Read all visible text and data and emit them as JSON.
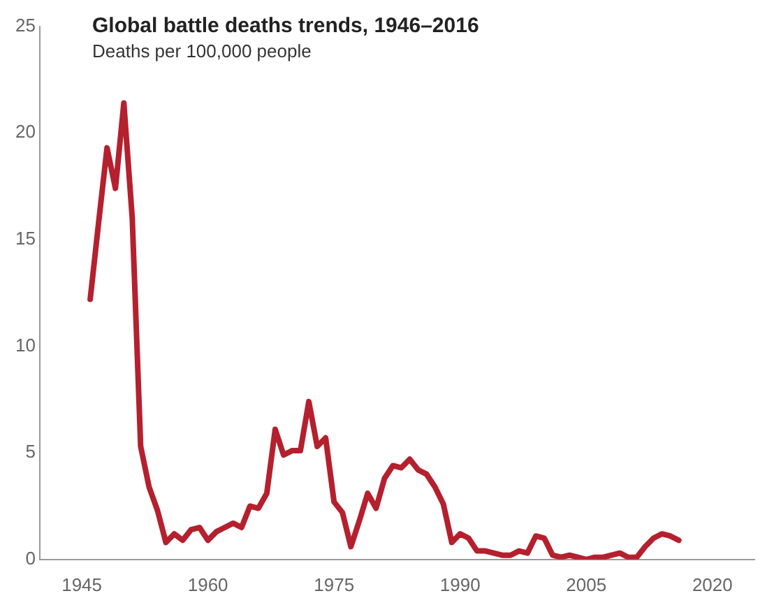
{
  "chart_data": {
    "type": "line",
    "title": "Global battle deaths trends, 1946–2016",
    "subtitle": "Deaths per 100,000 people",
    "x": [
      1946,
      1947,
      1948,
      1949,
      1950,
      1951,
      1952,
      1953,
      1954,
      1955,
      1956,
      1957,
      1958,
      1959,
      1960,
      1961,
      1962,
      1963,
      1964,
      1965,
      1966,
      1967,
      1968,
      1969,
      1970,
      1971,
      1972,
      1973,
      1974,
      1975,
      1976,
      1977,
      1978,
      1979,
      1980,
      1981,
      1982,
      1983,
      1984,
      1985,
      1986,
      1987,
      1988,
      1989,
      1990,
      1991,
      1992,
      1993,
      1994,
      1995,
      1996,
      1997,
      1998,
      1999,
      2000,
      2001,
      2002,
      2003,
      2004,
      2005,
      2006,
      2007,
      2008,
      2009,
      2010,
      2011,
      2012,
      2013,
      2014,
      2015,
      2016
    ],
    "series": [
      {
        "color": "#b5202e",
        "values": [
          12.2,
          15.8,
          19.3,
          17.4,
          21.4,
          16,
          5.3,
          3.4,
          2.3,
          0.8,
          1.2,
          0.9,
          1.4,
          1.5,
          0.9,
          1.3,
          1.5,
          1.7,
          1.5,
          2.5,
          2.4,
          3.1,
          6.1,
          4.9,
          5.1,
          5.1,
          7.4,
          5.3,
          5.7,
          2.7,
          2.2,
          0.6,
          1.8,
          3.1,
          2.4,
          3.8,
          4.4,
          4.3,
          4.7,
          4.2,
          4,
          3.4,
          2.6,
          0.8,
          1.2,
          1,
          0.4,
          0.4,
          0.3,
          0.2,
          0.2,
          0.4,
          0.3,
          1.1,
          1,
          0.2,
          0.1,
          0.2,
          0.1,
          0,
          0.1,
          0.1,
          0.2,
          0.3,
          0.1,
          0.1,
          0.6,
          1,
          1.2,
          1.1,
          0.9
        ]
      }
    ],
    "xlim": [
      1940,
      2025
    ],
    "xticks": [
      1945,
      1960,
      1975,
      1990,
      2005,
      2020
    ],
    "ylim": [
      0,
      25
    ],
    "yticks": [
      0,
      5,
      10,
      15,
      20,
      25
    ],
    "grid": false,
    "legend": false,
    "marker": "none",
    "line_style": "solid"
  }
}
